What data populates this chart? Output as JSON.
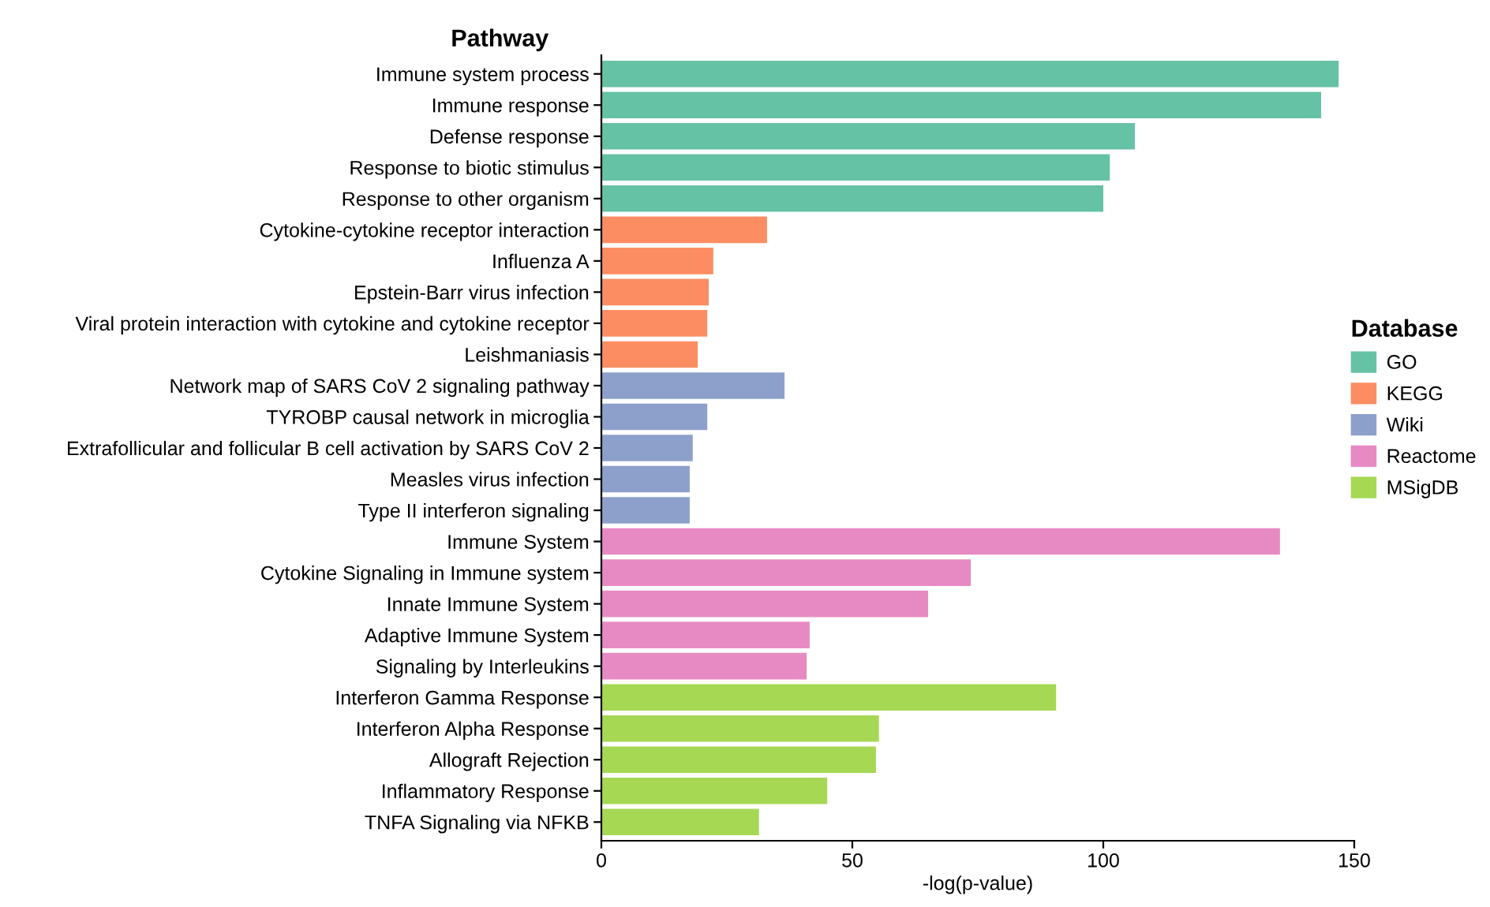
{
  "chart_data": {
    "type": "bar",
    "orientation": "horizontal",
    "ylabel": "Pathway",
    "xlabel": "-log(p-value)",
    "legend_title": "Database",
    "legend": "right",
    "grid": false,
    "categories": [
      "Immune system process",
      "Immune response",
      "Defense response",
      "Response to biotic stimulus",
      "Response to other organism",
      "Cytokine-cytokine receptor interaction",
      "Influenza A",
      "Epstein-Barr virus infection",
      "Viral protein interaction with cytokine and cytokine receptor",
      "Leishmaniasis",
      "Network map of SARS CoV 2 signaling pathway",
      "TYROBP causal network in microglia",
      "Extrafollicular and follicular B cell activation by SARS CoV 2",
      "Measles virus infection",
      "Type II interferon signaling",
      "Immune System",
      "Cytokine Signaling in Immune system",
      "Innate Immune System",
      "Adaptive Immune System",
      "Signaling by Interleukins",
      "Interferon Gamma Response",
      "Interferon Alpha Response",
      "Allograft Rejection",
      "Inflammatory Response",
      "TNFA Signaling via NFKB"
    ],
    "xlim": [
      0,
      150
    ],
    "xticks": [
      0,
      50,
      100,
      150
    ],
    "series": [
      {
        "name": "GO",
        "color": "#66c2a5",
        "values": [
          146.9,
          143.4,
          106.3,
          101.3,
          100,
          null,
          null,
          null,
          null,
          null,
          null,
          null,
          null,
          null,
          null,
          null,
          null,
          null,
          null,
          null,
          null,
          null,
          null,
          null,
          null
        ]
      },
      {
        "name": "KEGG",
        "color": "#fc8d62",
        "values": [
          null,
          null,
          null,
          null,
          null,
          33,
          22.3,
          21.4,
          21.1,
          19.2,
          null,
          null,
          null,
          null,
          null,
          null,
          null,
          null,
          null,
          null,
          null,
          null,
          null,
          null,
          null
        ]
      },
      {
        "name": "Wiki",
        "color": "#8da0cb",
        "values": [
          null,
          null,
          null,
          null,
          null,
          null,
          null,
          null,
          null,
          null,
          36.5,
          21.1,
          18.2,
          17.6,
          17.6,
          null,
          null,
          null,
          null,
          null,
          null,
          null,
          null,
          null,
          null
        ]
      },
      {
        "name": "Reactome",
        "color": "#e78ac3",
        "values": [
          null,
          null,
          null,
          null,
          null,
          null,
          null,
          null,
          null,
          null,
          null,
          null,
          null,
          null,
          null,
          135.2,
          73.6,
          65.1,
          41.5,
          40.9,
          null,
          null,
          null,
          null,
          null
        ]
      },
      {
        "name": "MSigDB",
        "color": "#a6d854",
        "values": [
          null,
          null,
          null,
          null,
          null,
          null,
          null,
          null,
          null,
          null,
          null,
          null,
          null,
          null,
          null,
          null,
          null,
          null,
          null,
          null,
          90.6,
          55.3,
          54.7,
          45,
          31.4
        ]
      }
    ]
  }
}
